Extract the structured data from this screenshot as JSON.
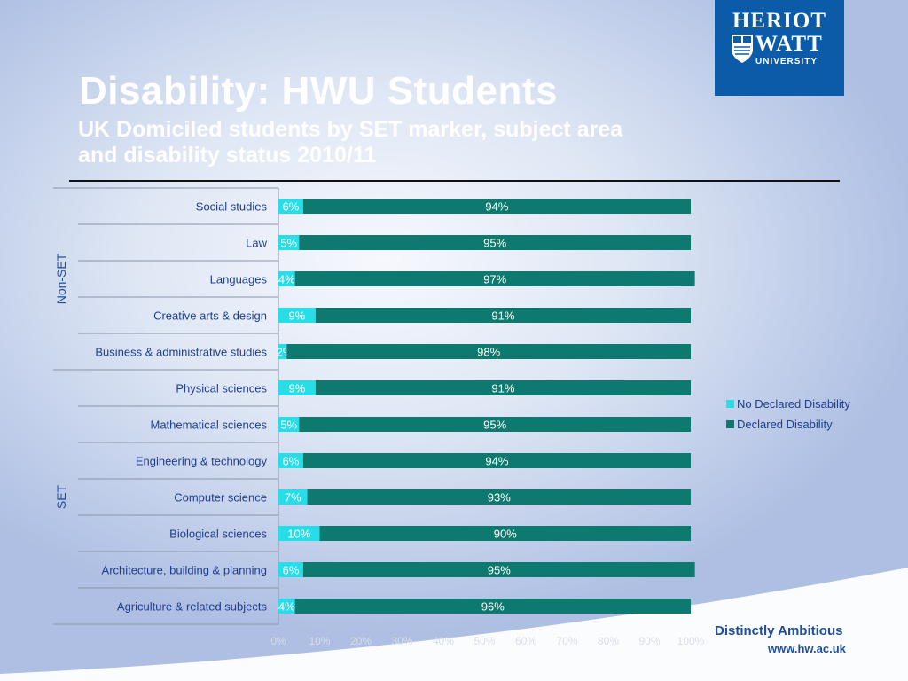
{
  "header": {
    "title": "Disability: HWU Students",
    "subtitle": "UK Domiciled students by SET marker, subject area and disability status 2010/11"
  },
  "logo": {
    "line1": "HERIOT",
    "line2": "WATT",
    "line3": "UNIVERSITY"
  },
  "footer": {
    "tagline": "Distinctly Ambitious",
    "url": "www.hw.ac.uk"
  },
  "colors": {
    "no_declared": "#26dde8",
    "declared": "#0e7a6f",
    "logo_bg": "#0b5ba8"
  },
  "chart_data": {
    "type": "bar",
    "orientation": "horizontal",
    "stacked": "percent",
    "categories": [
      "Social studies",
      "Law",
      "Languages",
      "Creative arts & design",
      "Business & administrative studies",
      "Physical sciences",
      "Mathematical sciences",
      "Engineering & technology",
      "Computer science",
      "Biological sciences",
      "Architecture, building & planning",
      "Agriculture & related subjects"
    ],
    "groups": [
      {
        "name": "Non-SET",
        "count": 5
      },
      {
        "name": "SET",
        "count": 7
      }
    ],
    "series": [
      {
        "name": "No Declared Disability",
        "values": [
          6,
          5,
          4,
          9,
          2,
          9,
          5,
          6,
          7,
          10,
          6,
          4
        ]
      },
      {
        "name": "Declared Disability",
        "values": [
          94,
          95,
          97,
          91,
          98,
          91,
          95,
          94,
          93,
          90,
          95,
          96
        ]
      }
    ],
    "x_ticks": [
      "0%",
      "10%",
      "20%",
      "30%",
      "40%",
      "50%",
      "60%",
      "70%",
      "80%",
      "90%",
      "100%"
    ],
    "xlim": [
      0,
      100
    ],
    "legend": "right"
  }
}
